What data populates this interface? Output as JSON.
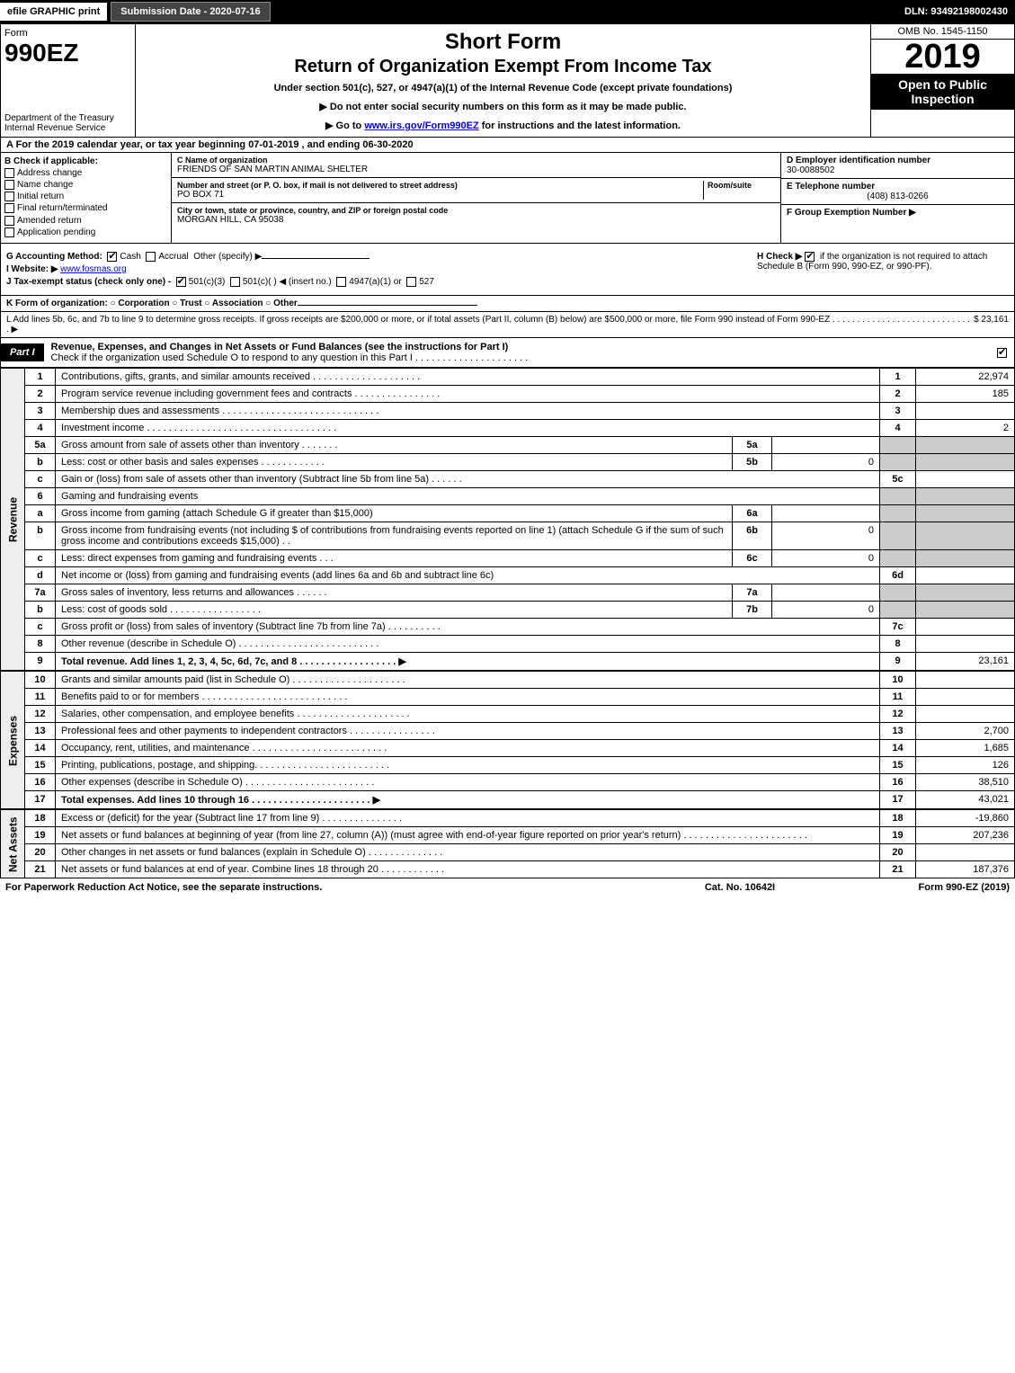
{
  "topbar": {
    "efile": "efile GRAPHIC print",
    "submission": "Submission Date - 2020-07-16",
    "dln": "DLN: 93492198002430"
  },
  "header": {
    "form_label": "Form",
    "form_num": "990EZ",
    "dept": "Department of the Treasury",
    "irs": "Internal Revenue Service",
    "title1": "Short Form",
    "title2": "Return of Organization Exempt From Income Tax",
    "sub1": "Under section 501(c), 527, or 4947(a)(1) of the Internal Revenue Code (except private foundations)",
    "sub2": "▶ Do not enter social security numbers on this form as it may be made public.",
    "sub3": "▶ Go to www.irs.gov/Form990EZ for instructions and the latest information.",
    "omb": "OMB No. 1545-1150",
    "year": "2019",
    "open": "Open to Public Inspection"
  },
  "rowA": "A For the 2019 calendar year, or tax year beginning 07-01-2019 , and ending 06-30-2020",
  "boxB": {
    "label": "B Check if applicable:",
    "items": [
      "Address change",
      "Name change",
      "Initial return",
      "Final return/terminated",
      "Amended return",
      "Application pending"
    ]
  },
  "boxC": {
    "name_lbl": "C Name of organization",
    "name": "FRIENDS OF SAN MARTIN ANIMAL SHELTER",
    "addr_lbl": "Number and street (or P. O. box, if mail is not delivered to street address)",
    "room_lbl": "Room/suite",
    "addr": "PO BOX 71",
    "city_lbl": "City or town, state or province, country, and ZIP or foreign postal code",
    "city": "MORGAN HILL, CA  95038"
  },
  "boxDEF": {
    "d_lbl": "D Employer identification number",
    "d": "30-0088502",
    "e_lbl": "E Telephone number",
    "e": "(408) 813-0266",
    "f_lbl": "F Group Exemption Number  ▶",
    "f": ""
  },
  "sec2": {
    "g": "G Accounting Method:",
    "g_cash": "Cash",
    "g_accr": "Accrual",
    "g_other": "Other (specify) ▶",
    "h": "H Check ▶",
    "h_txt": "if the organization is not required to attach Schedule B (Form 990, 990-EZ, or 990-PF).",
    "i": "I Website: ▶",
    "i_val": "www.fosmas.org",
    "j": "J Tax-exempt status (check only one) -",
    "j_a": "501(c)(3)",
    "j_b": "501(c)(  ) ◀ (insert no.)",
    "j_c": "4947(a)(1) or",
    "j_d": "527"
  },
  "k": "K Form of organization:   ○ Corporation   ○ Trust   ○ Association   ○ Other",
  "l": {
    "txt": "L Add lines 5b, 6c, and 7b to line 9 to determine gross receipts. If gross receipts are $200,000 or more, or if total assets (Part II, column (B) below) are $500,000 or more, file Form 990 instead of Form 990-EZ . . . . . . . . . . . . . . . . . . . . . . . . . . . . . ▶",
    "amt": "$ 23,161"
  },
  "part1": {
    "tag": "Part I",
    "title": "Revenue, Expenses, and Changes in Net Assets or Fund Balances (see the instructions for Part I)",
    "sub": "Check if the organization used Schedule O to respond to any question in this Part I . . . . . . . . . . . . . . . . . . . . ."
  },
  "sections": {
    "rev": "Revenue",
    "exp": "Expenses",
    "na": "Net Assets"
  },
  "lines": [
    {
      "n": "1",
      "d": "Contributions, gifts, grants, and similar amounts received . . . . . . . . . . . . . . . . . . . .",
      "ln": "1",
      "a": "22,974"
    },
    {
      "n": "2",
      "d": "Program service revenue including government fees and contracts . . . . . . . . . . . . . . . .",
      "ln": "2",
      "a": "185"
    },
    {
      "n": "3",
      "d": "Membership dues and assessments . . . . . . . . . . . . . . . . . . . . . . . . . . . . .",
      "ln": "3",
      "a": ""
    },
    {
      "n": "4",
      "d": "Investment income . . . . . . . . . . . . . . . . . . . . . . . . . . . . . . . . . . .",
      "ln": "4",
      "a": "2"
    },
    {
      "n": "5a",
      "d": "Gross amount from sale of assets other than inventory . . . . . . .",
      "sub": "5a",
      "sa": ""
    },
    {
      "n": "b",
      "d": "Less: cost or other basis and sales expenses . . . . . . . . . . . .",
      "sub": "5b",
      "sa": "0"
    },
    {
      "n": "c",
      "d": "Gain or (loss) from sale of assets other than inventory (Subtract line 5b from line 5a) . . . . . .",
      "ln": "5c",
      "a": ""
    },
    {
      "n": "6",
      "d": "Gaming and fundraising events"
    },
    {
      "n": "a",
      "d": "Gross income from gaming (attach Schedule G if greater than $15,000)",
      "sub": "6a",
      "sa": ""
    },
    {
      "n": "b",
      "d": "Gross income from fundraising events (not including $                   of contributions from fundraising events reported on line 1) (attach Schedule G if the sum of such gross income and contributions exceeds $15,000)   . .",
      "sub": "6b",
      "sa": "0"
    },
    {
      "n": "c",
      "d": "Less: direct expenses from gaming and fundraising events    . . .",
      "sub": "6c",
      "sa": "0"
    },
    {
      "n": "d",
      "d": "Net income or (loss) from gaming and fundraising events (add lines 6a and 6b and subtract line 6c)",
      "ln": "6d",
      "a": ""
    },
    {
      "n": "7a",
      "d": "Gross sales of inventory, less returns and allowances . . . . . .",
      "sub": "7a",
      "sa": ""
    },
    {
      "n": "b",
      "d": "Less: cost of goods sold    . . . . . . . . . . . . . . . . .",
      "sub": "7b",
      "sa": "0"
    },
    {
      "n": "c",
      "d": "Gross profit or (loss) from sales of inventory (Subtract line 7b from line 7a) . . . . . . . . . .",
      "ln": "7c",
      "a": ""
    },
    {
      "n": "8",
      "d": "Other revenue (describe in Schedule O) . . . . . . . . . . . . . . . . . . . . . . . . . .",
      "ln": "8",
      "a": ""
    },
    {
      "n": "9",
      "d": "Total revenue. Add lines 1, 2, 3, 4, 5c, 6d, 7c, and 8  . . . . . . . . . . . . . . . . . .  ▶",
      "ln": "9",
      "a": "23,161",
      "bold": true
    }
  ],
  "exp_lines": [
    {
      "n": "10",
      "d": "Grants and similar amounts paid (list in Schedule O) . . . . . . . . . . . . . . . . . . . . .",
      "ln": "10",
      "a": ""
    },
    {
      "n": "11",
      "d": "Benefits paid to or for members    . . . . . . . . . . . . . . . . . . . . . . . . . . .",
      "ln": "11",
      "a": ""
    },
    {
      "n": "12",
      "d": "Salaries, other compensation, and employee benefits . . . . . . . . . . . . . . . . . . . . .",
      "ln": "12",
      "a": ""
    },
    {
      "n": "13",
      "d": "Professional fees and other payments to independent contractors . . . . . . . . . . . . . . . .",
      "ln": "13",
      "a": "2,700"
    },
    {
      "n": "14",
      "d": "Occupancy, rent, utilities, and maintenance . . . . . . . . . . . . . . . . . . . . . . . . .",
      "ln": "14",
      "a": "1,685"
    },
    {
      "n": "15",
      "d": "Printing, publications, postage, and shipping. . . . . . . . . . . . . . . . . . . . . . . . .",
      "ln": "15",
      "a": "126"
    },
    {
      "n": "16",
      "d": "Other expenses (describe in Schedule O)    . . . . . . . . . . . . . . . . . . . . . . . .",
      "ln": "16",
      "a": "38,510"
    },
    {
      "n": "17",
      "d": "Total expenses. Add lines 10 through 16    . . . . . . . . . . . . . . . . . . . . . .  ▶",
      "ln": "17",
      "a": "43,021",
      "bold": true
    }
  ],
  "na_lines": [
    {
      "n": "18",
      "d": "Excess or (deficit) for the year (Subtract line 17 from line 9)     . . . . . . . . . . . . . . .",
      "ln": "18",
      "a": "-19,860"
    },
    {
      "n": "19",
      "d": "Net assets or fund balances at beginning of year (from line 27, column (A)) (must agree with end-of-year figure reported on prior year's return) . . . . . . . . . . . . . . . . . . . . . . .",
      "ln": "19",
      "a": "207,236"
    },
    {
      "n": "20",
      "d": "Other changes in net assets or fund balances (explain in Schedule O) . . . . . . . . . . . . . .",
      "ln": "20",
      "a": ""
    },
    {
      "n": "21",
      "d": "Net assets or fund balances at end of year. Combine lines 18 through 20 . . . . . . . . . . . .",
      "ln": "21",
      "a": "187,376"
    }
  ],
  "footer": {
    "l": "For Paperwork Reduction Act Notice, see the separate instructions.",
    "c": "Cat. No. 10642I",
    "r": "Form 990-EZ (2019)"
  }
}
